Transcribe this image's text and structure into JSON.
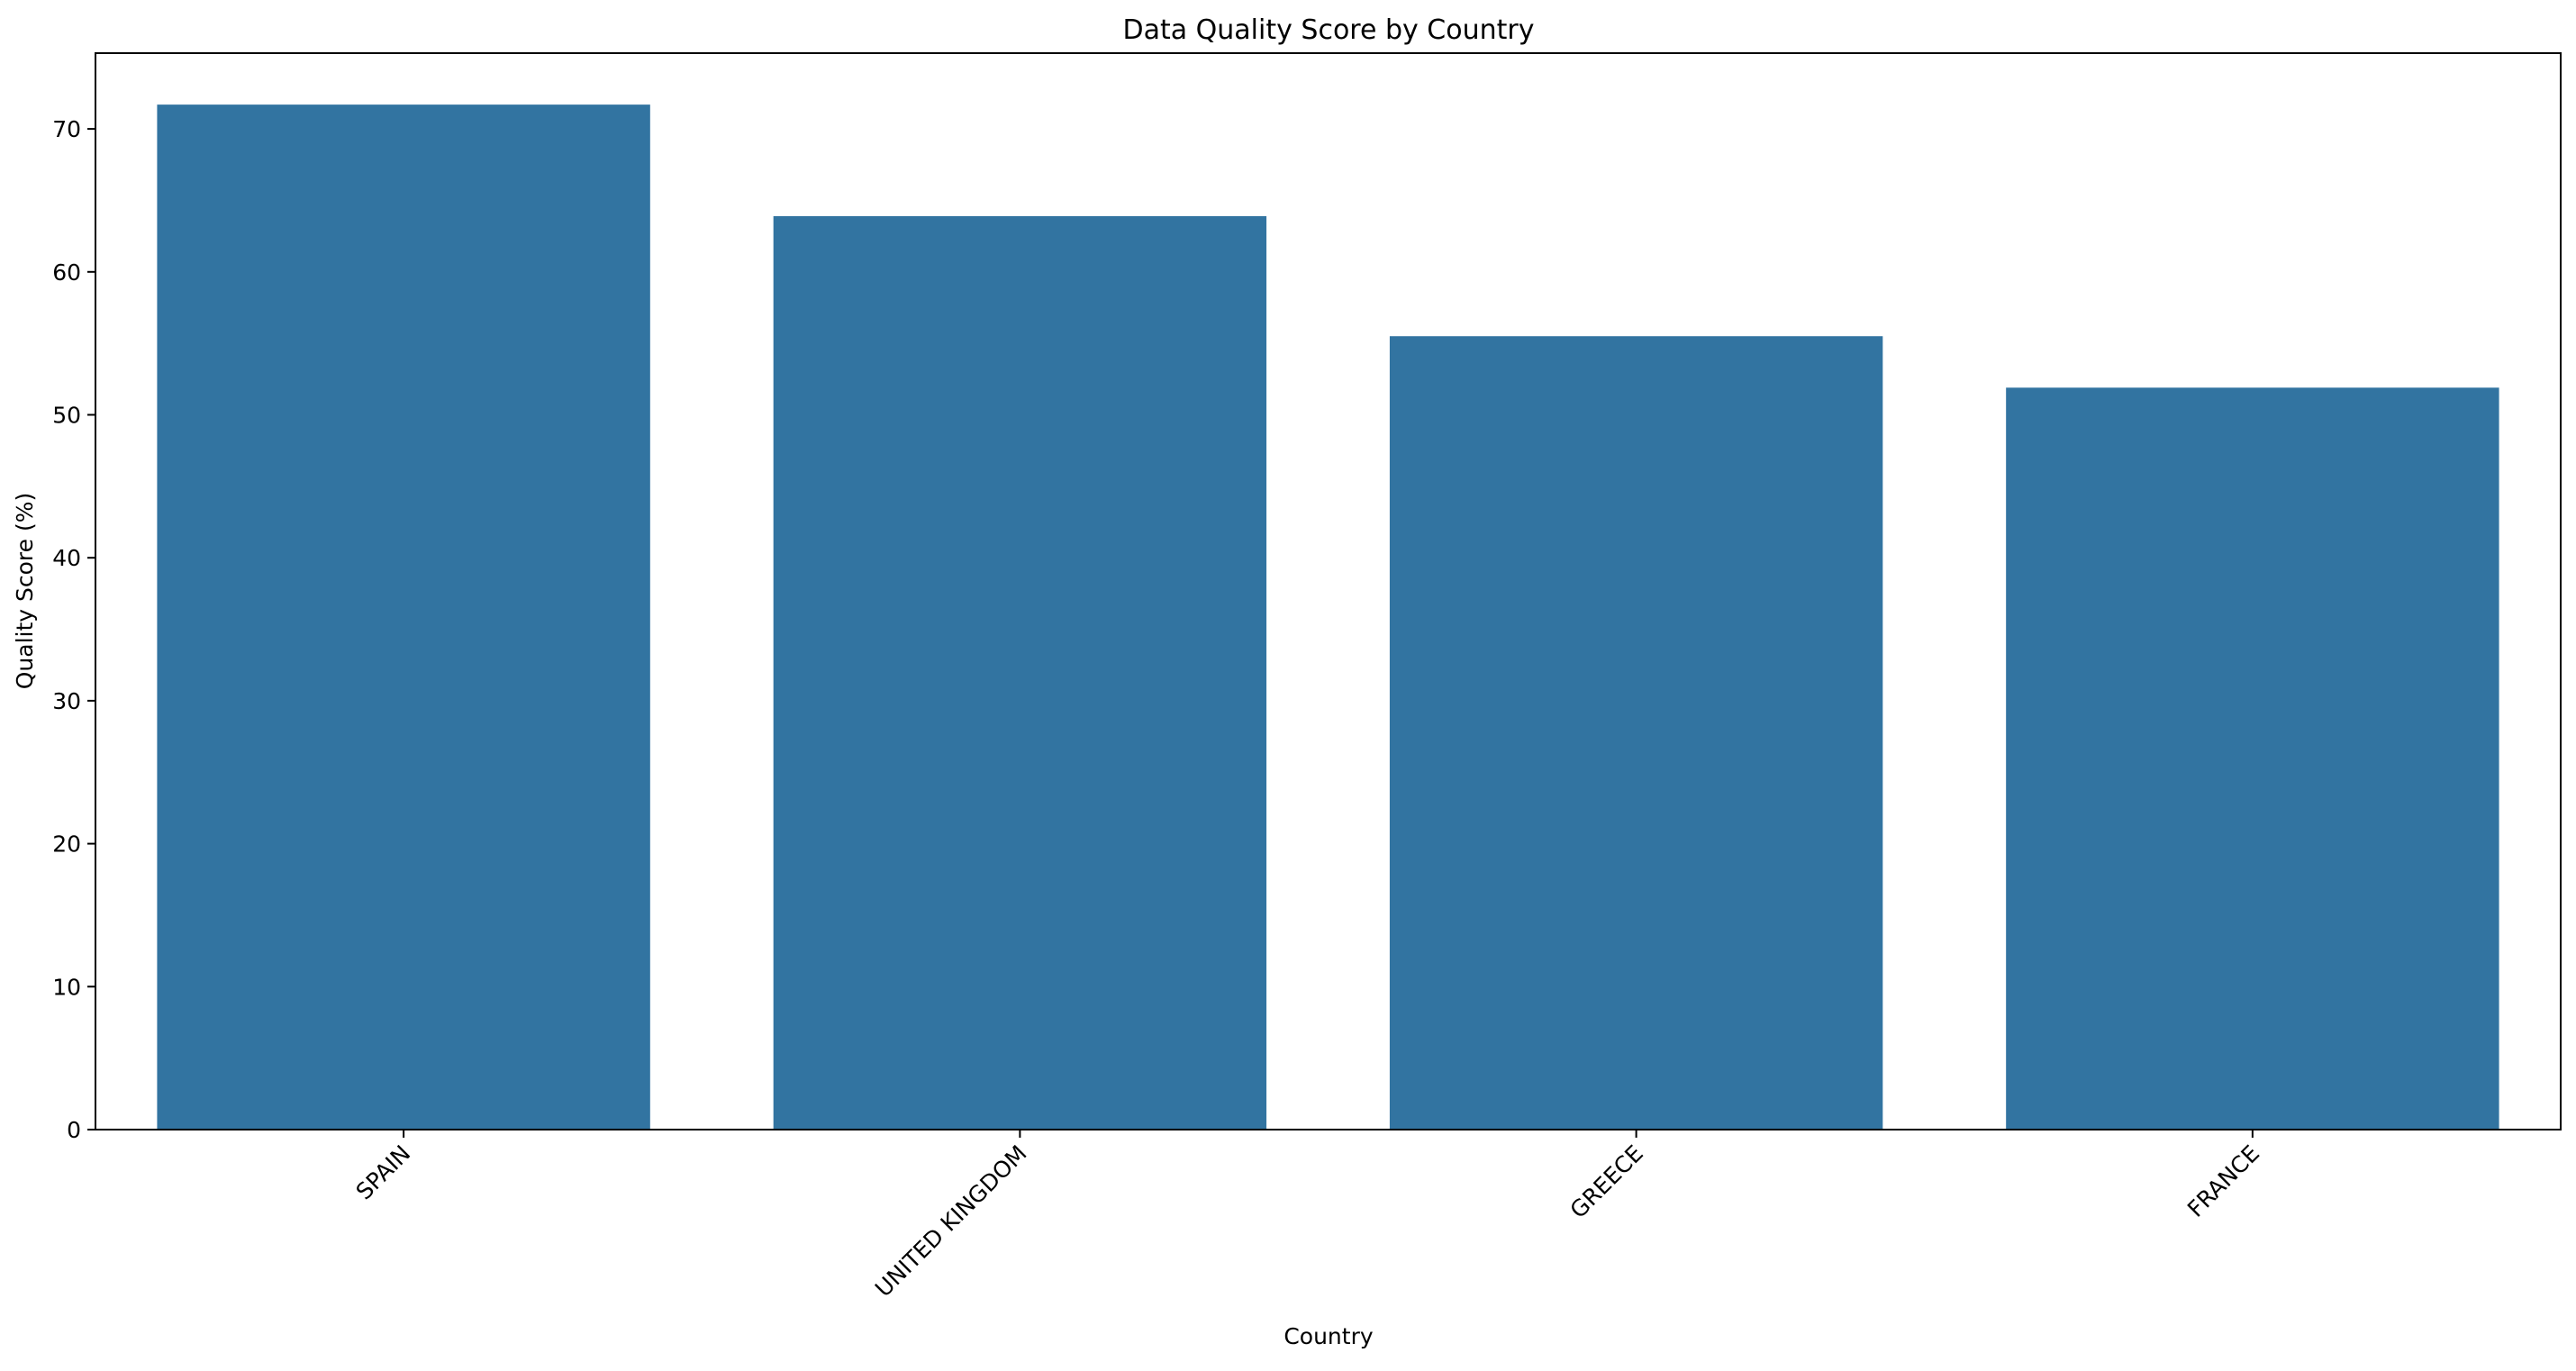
{
  "chart_data": {
    "type": "bar",
    "title": "Data Quality Score by Country",
    "xlabel": "Country",
    "ylabel": "Quality Score (%)",
    "categories": [
      "SPAIN",
      "UNITED KINGDOM",
      "GREECE",
      "FRANCE"
    ],
    "values": [
      71.7,
      63.9,
      55.5,
      51.9
    ],
    "ylim": [
      0,
      75.3
    ],
    "yticks": [
      0,
      10,
      20,
      30,
      40,
      50,
      60,
      70
    ],
    "grid": false,
    "legend": "none",
    "bar_color": "#3274a1",
    "x_tick_rotation": 45
  }
}
